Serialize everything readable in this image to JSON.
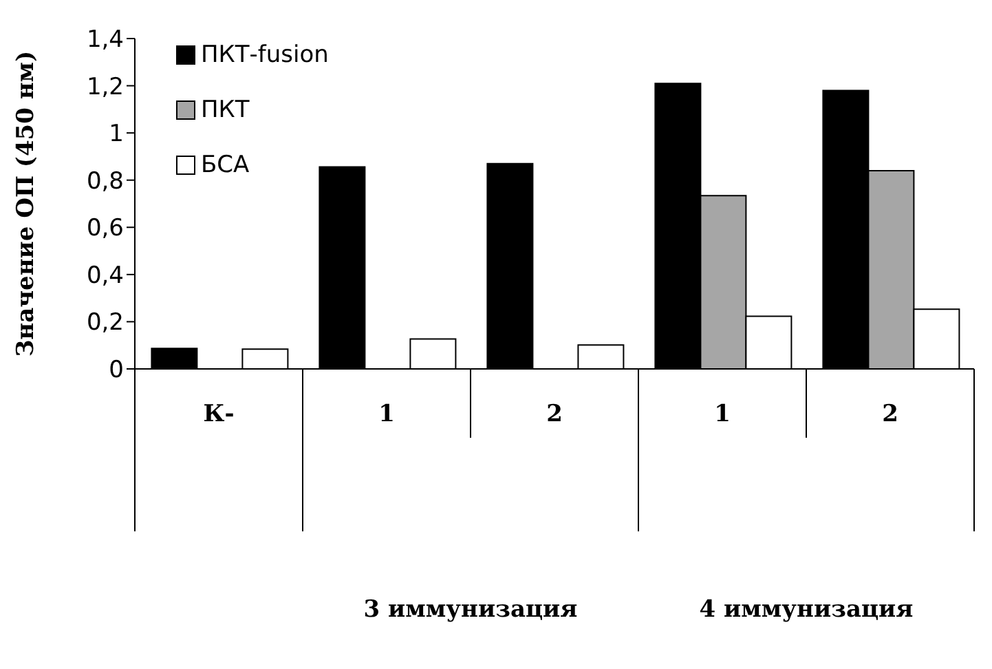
{
  "chart_data": {
    "type": "bar",
    "ylabel": "Значение ОП (450 нм)",
    "categories": [
      "К-",
      "1",
      "2",
      "1",
      "2"
    ],
    "series": [
      {
        "name": "ПКТ-fusion",
        "color": "#000000",
        "values": [
          0.087,
          0.856,
          0.87,
          1.21,
          1.18
        ]
      },
      {
        "name": "ПКТ",
        "color": "#a6a6a6",
        "values": [
          null,
          null,
          null,
          0.734,
          0.84
        ]
      },
      {
        "name": "БСА",
        "color": "#ffffff",
        "values": [
          0.084,
          0.127,
          0.101,
          0.223,
          0.253
        ]
      }
    ],
    "annotations": [
      "3 иммунизация",
      "4 иммунизация"
    ],
    "ylim": [
      0,
      1.4
    ],
    "yticks": [
      0,
      {
        "value": 0.2,
        "label": "0,2"
      },
      {
        "value": 0.4,
        "label": "0,4"
      },
      {
        "value": 0.6,
        "label": "0,6"
      },
      {
        "value": 0.8,
        "label": "0,8"
      },
      1,
      {
        "value": 1.2,
        "label": "1,2"
      },
      {
        "value": 1.4,
        "label": "1,4"
      }
    ],
    "grid": false,
    "legend": "top left"
  }
}
